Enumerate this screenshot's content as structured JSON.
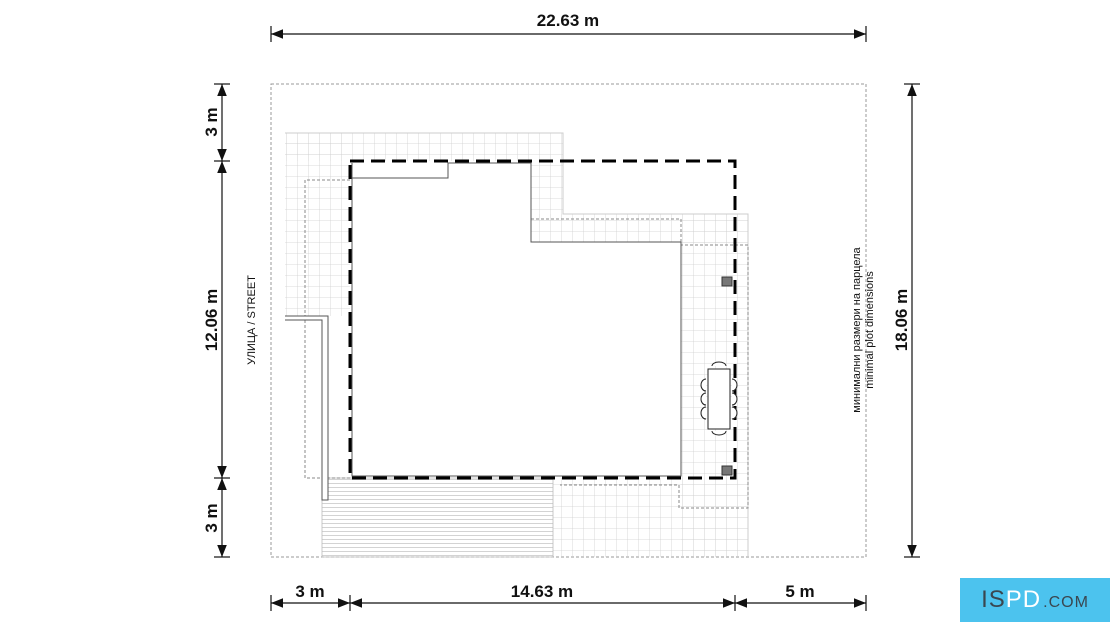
{
  "dimensions": {
    "top_total": "22.63 m",
    "left_front_setback": "3 m",
    "left_building": "12.06 m",
    "left_back_setback": "3 m",
    "right_total": "18.06 m",
    "bottom_left_setback": "3 m",
    "bottom_building": "14.63 m",
    "bottom_right_setback": "5 m"
  },
  "labels": {
    "street": "УЛИЦА / STREET",
    "plot_note_bg": "минимални размери на парцела",
    "plot_note_en": "minimal plot dimensions"
  },
  "logo": {
    "text": "ISPD.COM",
    "part1": "IS",
    "part2": "PD",
    "part3": ".COM",
    "color": "#4cc3ee"
  }
}
